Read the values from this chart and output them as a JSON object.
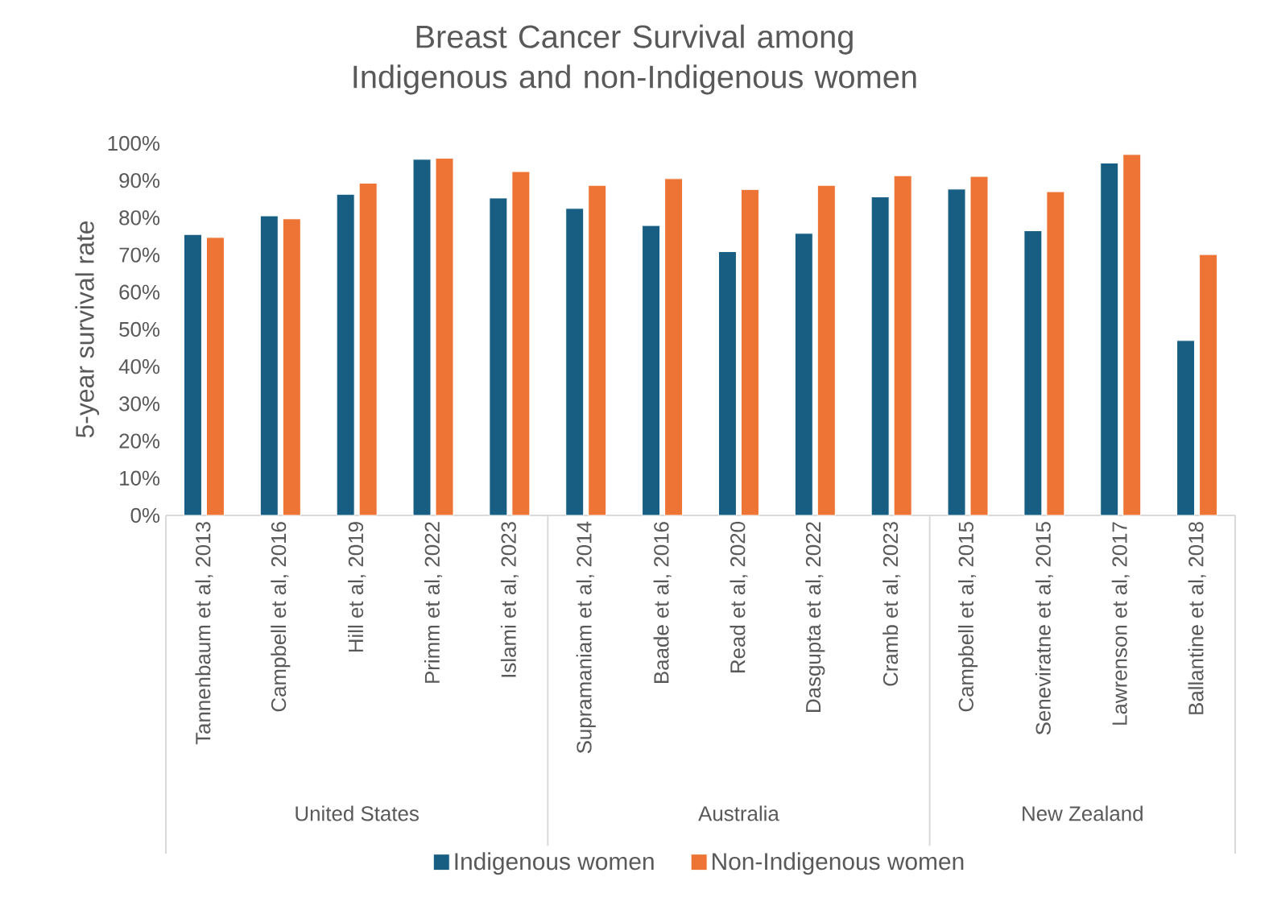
{
  "chart_data": {
    "type": "bar",
    "title": "Breast Cancer Survival among Indigenous and non-Indigenous women",
    "ylabel": "5-year survival rate",
    "categories": [
      "Tannenbaum et al, 2013",
      "Campbell et al, 2016",
      "Hill et al, 2019",
      "Primm et al, 2022",
      "Islami et al, 2023",
      "Supramaniam et al, 2014",
      "Baade et al, 2016",
      "Read et al, 2020",
      "Dasgupta et al, 2022",
      "Cramb et al, 2023",
      "Campbell et al, 2015",
      "Seneviratne et al, 2015",
      "Lawrenson et al, 2017",
      "Ballantine et al, 2018"
    ],
    "series": [
      {
        "name": "Indigenous women",
        "color": "#175e82",
        "values": [
          75.5,
          80.5,
          86.3,
          95.7,
          85.3,
          82.5,
          77.9,
          70.9,
          75.8,
          85.6,
          87.7,
          76.5,
          94.7,
          47.0
        ]
      },
      {
        "name": "Non-Indigenous women",
        "color": "#ed7434",
        "values": [
          74.7,
          79.7,
          89.3,
          96.0,
          92.4,
          88.7,
          90.5,
          87.6,
          88.7,
          91.3,
          91.1,
          87.0,
          97.0,
          70.1
        ]
      }
    ],
    "annotations": [
      "United States",
      "Australia",
      "New Zealand"
    ],
    "ylim": [
      0,
      100
    ],
    "yticks": [
      {
        "value": 0,
        "label": "0%"
      },
      {
        "value": 10,
        "label": "10%"
      },
      {
        "value": 20,
        "label": "20%"
      },
      {
        "value": 30,
        "label": "30%"
      },
      {
        "value": 40,
        "label": "40%"
      },
      {
        "value": 50,
        "label": "50%"
      },
      {
        "value": 60,
        "label": "60%"
      },
      {
        "value": 70,
        "label": "70%"
      },
      {
        "value": 80,
        "label": "80%"
      },
      {
        "value": 90,
        "label": "90%"
      },
      {
        "value": 100,
        "label": "100%"
      }
    ],
    "legend": "bottom"
  }
}
